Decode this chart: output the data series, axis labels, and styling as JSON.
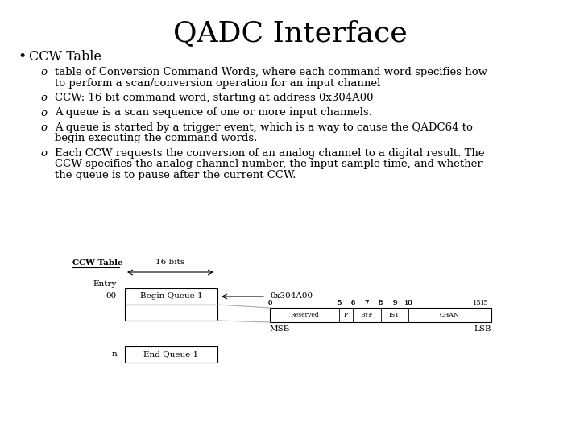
{
  "title": "QADC Interface",
  "title_fontsize": 26,
  "bg_color": "#ffffff",
  "text_color": "#000000",
  "bullet_text": "CCW Table",
  "bullet_fontsize": 11.5,
  "sub_items": [
    [
      "table of Conversion Command Words, where each command word specifies how",
      "to perform a scan/conversion operation for an input channel"
    ],
    [
      "CCW: 16 bit command word, starting at address 0x304A00"
    ],
    [
      "A queue is a scan sequence of one or more input channels."
    ],
    [
      "A queue is started by a trigger event, which is a way to cause the QADC64 to",
      "begin executing the command words."
    ],
    [
      "Each CCW requests the conversion of an analog channel to a digital result. The",
      "CCW specifies the analog channel number, the input sample time, and whether",
      "the queue is to pause after the current CCW."
    ]
  ],
  "sub_fontsize": 9.5,
  "diagram_label": "CCW Table"
}
